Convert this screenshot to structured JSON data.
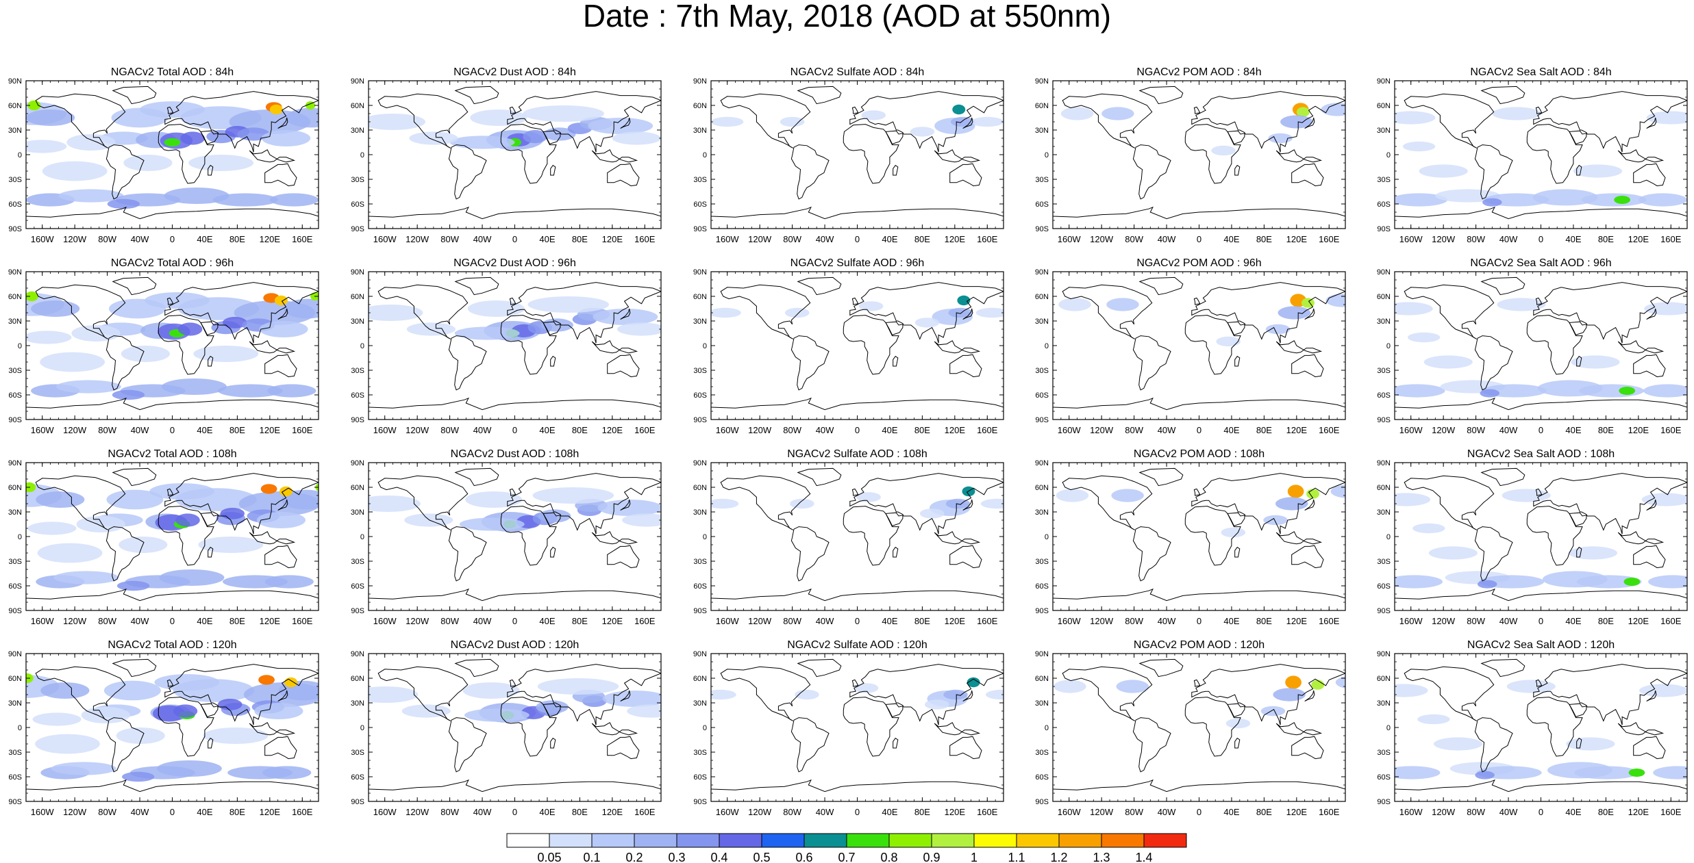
{
  "title": "Date : 7th May, 2018 (AOD at 550nm)",
  "columns": [
    {
      "species": "total",
      "title_prefix": "NGACv2 Total AOD"
    },
    {
      "species": "dust",
      "title_prefix": "NGACv2 Dust AOD"
    },
    {
      "species": "sulfate",
      "title_prefix": "NGACv2 Sulfate AOD"
    },
    {
      "species": "pom",
      "title_prefix": "NGACv2 POM AOD"
    },
    {
      "species": "seasalt",
      "title_prefix": "NGACv2 Sea Salt AOD"
    }
  ],
  "panels": [
    [
      "NGACv2 Total AOD : 84h",
      "NGACv2 Dust AOD : 84h",
      "NGACv2 Sulfate AOD : 84h",
      "NGACv2 POM AOD : 84h",
      "NGACv2 Sea Salt AOD : 84h"
    ],
    [
      "NGACv2 Total AOD : 96h",
      "NGACv2 Dust AOD : 96h",
      "NGACv2 Sulfate AOD : 96h",
      "NGACv2 POM AOD : 96h",
      "NGACv2 Sea Salt AOD : 96h"
    ],
    [
      "NGACv2 Total AOD : 108h",
      "NGACv2 Dust AOD : 108h",
      "NGACv2 Sulfate AOD : 108h",
      "NGACv2 POM AOD : 108h",
      "NGACv2 Sea Salt AOD : 108h"
    ],
    [
      "NGACv2 Total AOD : 120h",
      "NGACv2 Dust AOD : 120h",
      "NGACv2 Sulfate AOD : 120h",
      "NGACv2 POM AOD : 120h",
      "NGACv2 Sea Salt  AOD : 120h"
    ]
  ],
  "lat_labels": [
    "90N",
    "60N",
    "30N",
    "0",
    "30S",
    "60S",
    "90S"
  ],
  "lon_labels": [
    "160W",
    "120W",
    "80W",
    "40W",
    "0",
    "40E",
    "80E",
    "120E",
    "160E"
  ],
  "lon_values": [
    -160,
    -120,
    -80,
    -40,
    0,
    40,
    80,
    120,
    160
  ],
  "lat_values": [
    90,
    60,
    30,
    0,
    -30,
    -60,
    -90
  ],
  "colorbar": {
    "levels": [
      "0.05",
      "0.1",
      "0.2",
      "0.3",
      "0.4",
      "0.5",
      "0.6",
      "0.7",
      "0.8",
      "0.9",
      "1",
      "1.1",
      "1.2",
      "1.3",
      "1.4"
    ],
    "colors": [
      "#ffffff",
      "#d3e0fb",
      "#b7c9f8",
      "#9fb3f2",
      "#8495ee",
      "#6468e6",
      "#1f64f0",
      "#0a8f92",
      "#3ae00c",
      "#8ef000",
      "#b2f040",
      "#fdfb00",
      "#fbc800",
      "#f8a000",
      "#f87800",
      "#f22a10"
    ]
  }
}
